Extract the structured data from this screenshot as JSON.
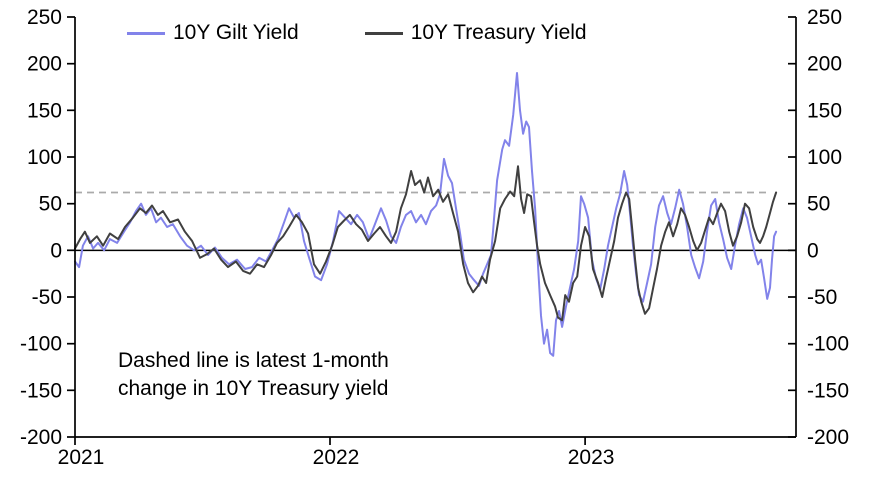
{
  "legend": {
    "items": [
      {
        "label": "10Y Gilt Yield",
        "color": "#8283ea"
      },
      {
        "label": "10Y Treasury Yield",
        "color": "#404040"
      }
    ]
  },
  "annotation": {
    "line1": "Dashed line is latest 1-month",
    "line2": "change in 10Y Treasury yield"
  },
  "chart_data": {
    "type": "line",
    "title": "",
    "xlabel": "",
    "ylabel": "",
    "grid": false,
    "legend_position": "top",
    "background": "#ffffff",
    "axis_color": "#000000",
    "xlim": [
      2021.0,
      2023.827
    ],
    "ylim": [
      -200,
      250
    ],
    "y_ticks": [
      250,
      200,
      150,
      100,
      50,
      0,
      -50,
      -100,
      -150,
      -200
    ],
    "x_ticks": [
      {
        "label": "2021",
        "year": 2021
      },
      {
        "label": "2022",
        "year": 2022
      },
      {
        "label": "2023",
        "year": 2023
      }
    ],
    "zero_line": 0,
    "dashed_reference_line": {
      "value": 62,
      "x_end": 2023.725,
      "color": "#aaaaaa",
      "meaning": "latest 1-month change in 10Y Treasury yield"
    },
    "series": [
      {
        "name": "10Y Gilt Yield",
        "color": "#8283ea",
        "x": [
          2021.0,
          2021.016,
          2021.031,
          2021.051,
          2021.071,
          2021.09,
          2021.114,
          2021.137,
          2021.165,
          2021.192,
          2021.216,
          2021.239,
          2021.259,
          2021.278,
          2021.298,
          2021.318,
          2021.337,
          2021.361,
          2021.384,
          2021.412,
          2021.439,
          2021.467,
          2021.494,
          2021.522,
          2021.549,
          2021.576,
          2021.604,
          2021.635,
          2021.667,
          2021.694,
          2021.722,
          2021.749,
          2021.773,
          2021.796,
          2021.82,
          2021.839,
          2021.859,
          2021.878,
          2021.898,
          2021.918,
          2021.941,
          2021.965,
          2021.988,
          2022.012,
          2022.035,
          2022.059,
          2022.082,
          2022.106,
          2022.129,
          2022.153,
          2022.176,
          2022.2,
          2022.22,
          2022.239,
          2022.259,
          2022.278,
          2022.298,
          2022.318,
          2022.337,
          2022.357,
          2022.376,
          2022.396,
          2022.416,
          2022.431,
          2022.447,
          2022.463,
          2022.478,
          2022.494,
          2022.51,
          2022.525,
          2022.545,
          2022.565,
          2022.584,
          2022.6,
          2022.616,
          2022.631,
          2022.639,
          2022.655,
          2022.675,
          2022.686,
          2022.702,
          2022.718,
          2022.733,
          2022.745,
          2022.757,
          2022.769,
          2022.78,
          2022.792,
          2022.804,
          2022.816,
          2022.827,
          2022.839,
          2022.851,
          2022.863,
          2022.875,
          2022.886,
          2022.898,
          2022.91,
          2022.925,
          2022.941,
          2022.957,
          2022.973,
          2022.984,
          2022.996,
          2023.012,
          2023.027,
          2023.043,
          2023.059,
          2023.075,
          2023.09,
          2023.106,
          2023.122,
          2023.137,
          2023.153,
          2023.165,
          2023.176,
          2023.188,
          2023.2,
          2023.212,
          2023.227,
          2023.243,
          2023.259,
          2023.275,
          2023.29,
          2023.306,
          2023.322,
          2023.337,
          2023.353,
          2023.369,
          2023.384,
          2023.4,
          2023.416,
          2023.431,
          2023.447,
          2023.463,
          2023.478,
          2023.494,
          2023.51,
          2023.525,
          2023.541,
          2023.557,
          2023.573,
          2023.588,
          2023.604,
          2023.62,
          2023.635,
          2023.651,
          2023.667,
          2023.678,
          2023.69,
          2023.702,
          2023.714,
          2023.725,
          2023.733,
          2023.741,
          2023.749
        ],
        "values": [
          -12,
          -18,
          5,
          15,
          2,
          8,
          0,
          12,
          8,
          20,
          30,
          42,
          50,
          38,
          45,
          30,
          35,
          25,
          28,
          15,
          5,
          0,
          5,
          -5,
          3,
          -8,
          -15,
          -10,
          -20,
          -18,
          -8,
          -12,
          0,
          12,
          30,
          45,
          35,
          40,
          10,
          -8,
          -28,
          -32,
          -15,
          10,
          42,
          35,
          28,
          38,
          30,
          12,
          28,
          45,
          32,
          15,
          8,
          25,
          38,
          42,
          30,
          38,
          28,
          42,
          48,
          60,
          98,
          80,
          72,
          45,
          18,
          -10,
          -25,
          -32,
          -38,
          -25,
          -15,
          -5,
          20,
          75,
          108,
          118,
          112,
          145,
          190,
          150,
          125,
          138,
          132,
          85,
          45,
          -20,
          -70,
          -100,
          -85,
          -110,
          -113,
          -75,
          -65,
          -82,
          -60,
          -40,
          -20,
          10,
          58,
          50,
          35,
          -10,
          -30,
          -42,
          -20,
          5,
          25,
          45,
          60,
          85,
          70,
          40,
          5,
          -25,
          -48,
          -55,
          -35,
          -15,
          25,
          48,
          58,
          40,
          28,
          45,
          65,
          50,
          25,
          -5,
          -18,
          -30,
          -12,
          20,
          48,
          55,
          30,
          12,
          -8,
          -20,
          5,
          28,
          45,
          35,
          15,
          -5,
          -15,
          -10,
          -30,
          -52,
          -40,
          -10,
          15,
          20
        ]
      },
      {
        "name": "10Y Treasury Yield",
        "color": "#404040",
        "x": [
          2021.0,
          2021.02,
          2021.039,
          2021.059,
          2021.086,
          2021.11,
          2021.137,
          2021.169,
          2021.196,
          2021.227,
          2021.255,
          2021.278,
          2021.302,
          2021.325,
          2021.345,
          2021.373,
          2021.404,
          2021.431,
          2021.459,
          2021.49,
          2021.518,
          2021.545,
          2021.573,
          2021.6,
          2021.631,
          2021.659,
          2021.686,
          2021.714,
          2021.741,
          2021.769,
          2021.792,
          2021.816,
          2021.839,
          2021.867,
          2021.89,
          2021.914,
          2021.937,
          2021.961,
          2021.984,
          2022.008,
          2022.031,
          2022.055,
          2022.078,
          2022.102,
          2022.125,
          2022.149,
          2022.173,
          2022.196,
          2022.22,
          2022.239,
          2022.259,
          2022.278,
          2022.298,
          2022.318,
          2022.333,
          2022.353,
          2022.369,
          2022.384,
          2022.404,
          2022.424,
          2022.443,
          2022.463,
          2022.482,
          2022.502,
          2022.522,
          2022.541,
          2022.561,
          2022.58,
          2022.596,
          2022.612,
          2022.627,
          2022.647,
          2022.667,
          2022.686,
          2022.706,
          2022.722,
          2022.737,
          2022.749,
          2022.761,
          2022.773,
          2022.788,
          2022.8,
          2022.812,
          2022.824,
          2022.843,
          2022.863,
          2022.882,
          2022.894,
          2022.91,
          2022.922,
          2022.937,
          2022.953,
          2022.969,
          2022.984,
          2023.0,
          2023.016,
          2023.031,
          2023.051,
          2023.067,
          2023.082,
          2023.098,
          2023.114,
          2023.129,
          2023.145,
          2023.161,
          2023.173,
          2023.184,
          2023.196,
          2023.208,
          2023.22,
          2023.235,
          2023.251,
          2023.267,
          2023.282,
          2023.298,
          2023.314,
          2023.329,
          2023.345,
          2023.361,
          2023.376,
          2023.392,
          2023.408,
          2023.424,
          2023.439,
          2023.455,
          2023.471,
          2023.486,
          2023.502,
          2023.518,
          2023.533,
          2023.549,
          2023.565,
          2023.58,
          2023.596,
          2023.612,
          2023.627,
          2023.643,
          2023.659,
          2023.675,
          2023.686,
          2023.698,
          2023.71,
          2023.725,
          2023.737,
          2023.749
        ],
        "values": [
          2,
          12,
          20,
          8,
          15,
          5,
          18,
          12,
          25,
          35,
          45,
          40,
          48,
          38,
          42,
          30,
          33,
          20,
          10,
          -8,
          -4,
          2,
          -10,
          -18,
          -12,
          -22,
          -25,
          -15,
          -18,
          -5,
          8,
          15,
          25,
          38,
          30,
          18,
          -15,
          -25,
          -12,
          5,
          25,
          32,
          38,
          28,
          22,
          10,
          18,
          25,
          15,
          8,
          20,
          45,
          60,
          85,
          70,
          75,
          62,
          78,
          58,
          65,
          52,
          60,
          40,
          20,
          -15,
          -35,
          -45,
          -38,
          -28,
          -35,
          -10,
          10,
          45,
          55,
          63,
          58,
          90,
          55,
          40,
          60,
          58,
          30,
          5,
          -15,
          -35,
          -48,
          -60,
          -72,
          -75,
          -48,
          -55,
          -35,
          -28,
          5,
          25,
          15,
          -20,
          -35,
          -50,
          -30,
          -10,
          10,
          35,
          50,
          62,
          55,
          25,
          -10,
          -40,
          -55,
          -68,
          -62,
          -40,
          -20,
          5,
          20,
          30,
          15,
          28,
          45,
          38,
          25,
          10,
          0,
          8,
          22,
          35,
          28,
          40,
          50,
          42,
          20,
          5,
          15,
          30,
          50,
          45,
          25,
          12,
          8,
          15,
          25,
          40,
          52,
          62
        ]
      }
    ]
  }
}
